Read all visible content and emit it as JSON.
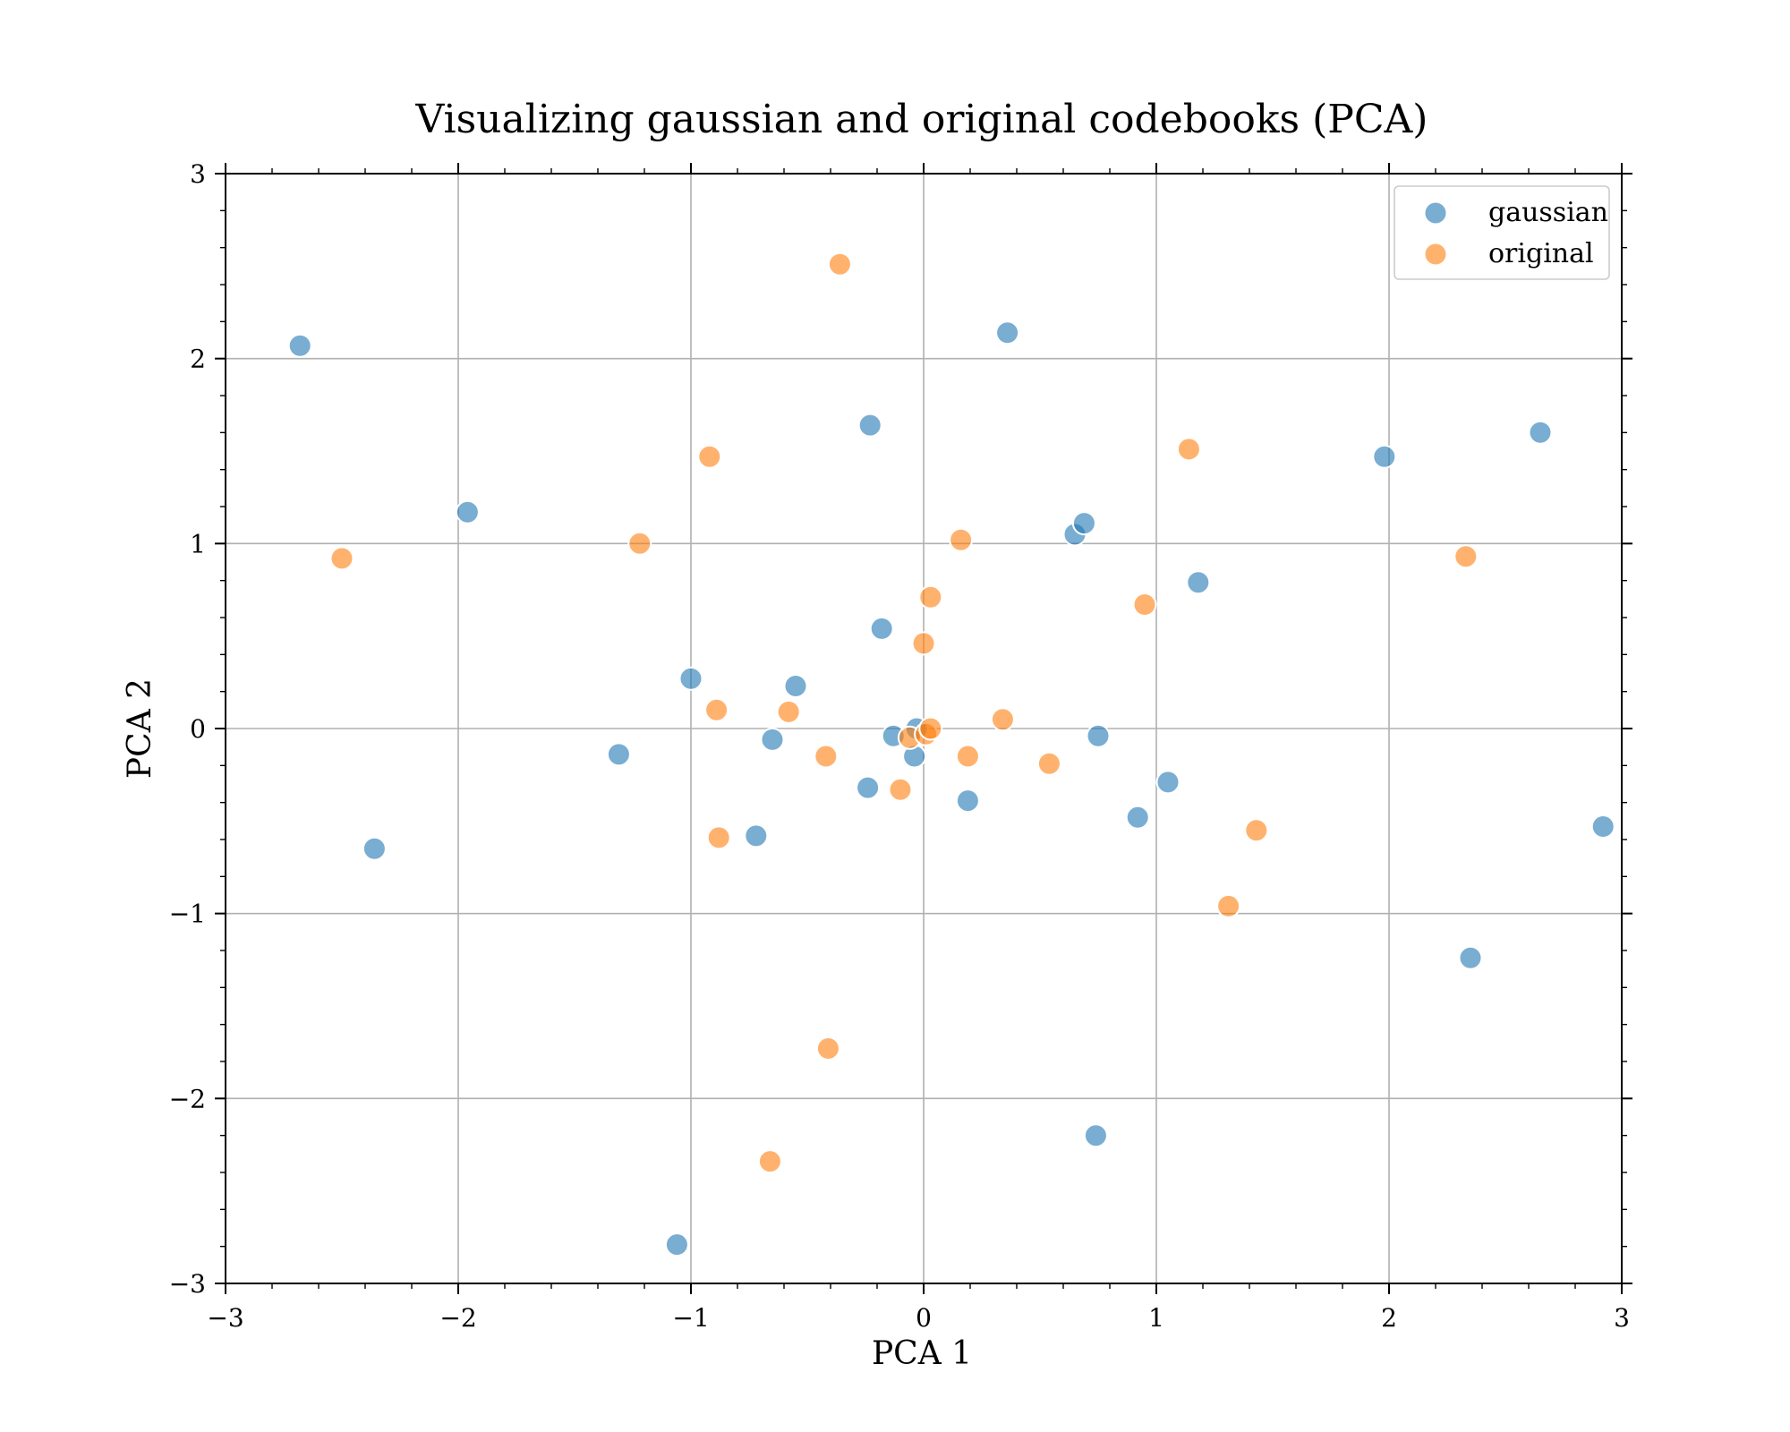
{
  "chart_data": {
    "type": "scatter",
    "title": "Visualizing gaussian and original codebooks (PCA)",
    "xlabel": "PCA 1",
    "ylabel": "PCA 2",
    "xlim": [
      -3,
      3
    ],
    "ylim": [
      -3,
      3
    ],
    "x_ticks": [
      -3,
      -2,
      -1,
      0,
      1,
      2,
      3
    ],
    "y_ticks": [
      -3,
      -2,
      -1,
      0,
      1,
      2,
      3
    ],
    "x_tick_labels": [
      "−3",
      "−2",
      "−1",
      "0",
      "1",
      "2",
      "3"
    ],
    "y_tick_labels": [
      "−3",
      "−2",
      "−1",
      "0",
      "1",
      "2",
      "3"
    ],
    "grid": true,
    "legend_position": "top-right",
    "series": [
      {
        "name": "gaussian",
        "color": "#1f77b4",
        "points": [
          [
            -2.68,
            2.07
          ],
          [
            -1.96,
            1.17
          ],
          [
            -2.36,
            -0.65
          ],
          [
            -1.31,
            -0.14
          ],
          [
            -1.06,
            -2.79
          ],
          [
            -1.0,
            0.27
          ],
          [
            -0.72,
            -0.58
          ],
          [
            -0.65,
            -0.06
          ],
          [
            -0.55,
            0.23
          ],
          [
            -0.23,
            1.64
          ],
          [
            -0.24,
            -0.32
          ],
          [
            -0.18,
            0.54
          ],
          [
            -0.13,
            -0.04
          ],
          [
            -0.04,
            -0.15
          ],
          [
            -0.03,
            0.0
          ],
          [
            0.19,
            -0.39
          ],
          [
            0.36,
            2.14
          ],
          [
            0.65,
            1.05
          ],
          [
            0.69,
            1.11
          ],
          [
            0.74,
            -2.2
          ],
          [
            0.75,
            -0.04
          ],
          [
            0.92,
            -0.48
          ],
          [
            1.05,
            -0.29
          ],
          [
            1.18,
            0.79
          ],
          [
            1.98,
            1.47
          ],
          [
            2.35,
            -1.24
          ],
          [
            2.65,
            1.6
          ],
          [
            2.92,
            -0.53
          ]
        ]
      },
      {
        "name": "original",
        "color": "#ff7f0e",
        "points": [
          [
            -2.5,
            0.92
          ],
          [
            -1.22,
            1.0
          ],
          [
            -0.92,
            1.47
          ],
          [
            -0.89,
            0.1
          ],
          [
            -0.88,
            -0.59
          ],
          [
            -0.66,
            -2.34
          ],
          [
            -0.58,
            0.09
          ],
          [
            -0.42,
            -0.15
          ],
          [
            -0.41,
            -1.73
          ],
          [
            -0.36,
            2.51
          ],
          [
            -0.1,
            -0.33
          ],
          [
            -0.06,
            -0.05
          ],
          [
            0.0,
            0.46
          ],
          [
            0.01,
            -0.03
          ],
          [
            0.03,
            0.71
          ],
          [
            0.03,
            0.0
          ],
          [
            0.16,
            1.02
          ],
          [
            0.19,
            -0.15
          ],
          [
            0.34,
            0.05
          ],
          [
            0.54,
            -0.19
          ],
          [
            0.95,
            0.67
          ],
          [
            1.14,
            1.51
          ],
          [
            1.31,
            -0.96
          ],
          [
            1.43,
            -0.55
          ],
          [
            2.33,
            0.93
          ]
        ]
      }
    ]
  }
}
